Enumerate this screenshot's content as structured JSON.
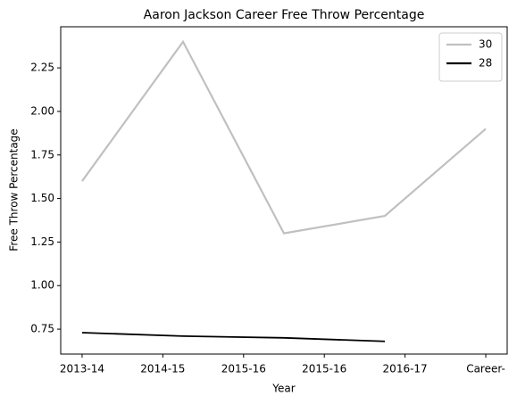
{
  "chart_data": {
    "type": "line",
    "title": "Aaron Jackson  Career Free Throw Percentage",
    "x_label": "Year",
    "y_label": "Free Throw Percentage",
    "xticks": [
      {
        "value": 0,
        "label": "2013-14"
      },
      {
        "value": 1,
        "label": "2014-15"
      },
      {
        "value": 2,
        "label": "2015-16"
      },
      {
        "value": 3,
        "label": "2015-16"
      },
      {
        "value": 4,
        "label": "2016-17"
      },
      {
        "value": 5,
        "label": "Career-"
      }
    ],
    "xlim": [
      -0.265,
      5.265
    ],
    "ylim": [
      0.607,
      2.486
    ],
    "yticks": [
      0.75,
      {
        "value": 1.0,
        "label": "1.00"
      },
      1.25,
      {
        "value": 1.5,
        "label": "1.50"
      },
      1.75,
      {
        "value": 2.0,
        "label": "2.00"
      },
      2.25
    ],
    "legend": "upper right",
    "series": [
      {
        "name": "30",
        "color": "#c0c0c0",
        "x": [
          0,
          1.25,
          2.5,
          3.75,
          5
        ],
        "values": [
          1.6,
          2.4,
          1.3,
          1.4,
          1.9
        ]
      },
      {
        "name": "28",
        "color": "#000000",
        "x": [
          0,
          1.25,
          2.5,
          3.75
        ],
        "values": [
          0.73,
          0.71,
          0.7,
          0.68
        ]
      }
    ]
  }
}
